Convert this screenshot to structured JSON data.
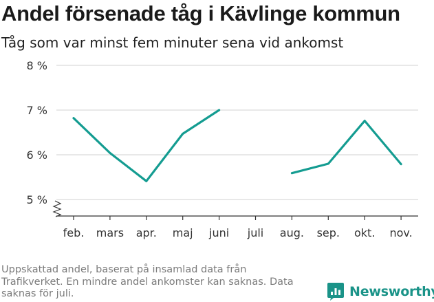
{
  "title": "Andel försenade tåg i Kävlinge kommun",
  "subtitle": "Tåg som var minst fem minuter sena vid ankomst",
  "footnote": "Uppskattad andel, baserat på insamlad data från Trafikverket. En mindre andel ankomster kan saknas. Data saknas för juli.",
  "brand": {
    "name": "Newsworthy",
    "icon": "newsworthy-logo-icon"
  },
  "colors": {
    "line": "#149c91",
    "grid": "#d9d9d9",
    "axis": "#333333",
    "brand": "#1a9388"
  },
  "chart_data": {
    "type": "line",
    "categories": [
      "feb.",
      "mars",
      "apr.",
      "maj",
      "juni",
      "juli",
      "aug.",
      "sep.",
      "okt.",
      "nov."
    ],
    "series": [
      {
        "values": [
          6.82,
          6.04,
          5.41,
          6.47,
          7.0,
          null,
          5.59,
          5.8,
          6.76,
          5.79
        ]
      }
    ],
    "y_ticks": [
      {
        "value": 5,
        "label": "5 %"
      },
      {
        "value": 6,
        "label": "6 %"
      },
      {
        "value": 7,
        "label": "7 %"
      },
      {
        "value": 8,
        "label": "8 %"
      }
    ],
    "ylim": [
      5,
      8
    ],
    "y_axis_break": true,
    "grid": true,
    "xlabel": "",
    "ylabel": ""
  }
}
